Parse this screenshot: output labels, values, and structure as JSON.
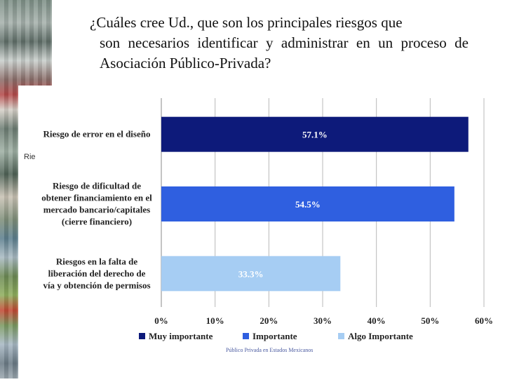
{
  "slide": {
    "title_line1": "¿Cuáles cree Ud., que son los principales riesgos que",
    "title_rest": "son necesarios identificar y administrar en un proceso de Asociación Público-Privada?",
    "stray_label": "Rie"
  },
  "chart_data": {
    "type": "bar",
    "orientation": "horizontal",
    "categories": [
      [
        "Riesgo de error en el diseño"
      ],
      [
        "Riesgo de dificultad de",
        "obtener financiamiento en el",
        "mercado bancario/capitales",
        "(cierre financiero)"
      ],
      [
        "Riesgos en la falta de",
        "liberación del derecho de",
        "vía y obtención de permisos"
      ]
    ],
    "values": [
      57.1,
      54.5,
      33.3
    ],
    "data_labels": [
      "57.1%",
      "54.5%",
      "33.3%"
    ],
    "colors": [
      "#0d1a7a",
      "#2f5fe0",
      "#a6cdf3"
    ],
    "xlim": [
      0,
      60
    ],
    "xticks": [
      "0%",
      "10%",
      "20%",
      "30%",
      "40%",
      "50%",
      "60%"
    ],
    "grid": true,
    "legend_position": "bottom",
    "legend": [
      {
        "label": "Muy importante",
        "color": "#0d1a7a"
      },
      {
        "label": "Importante",
        "color": "#2f5fe0"
      },
      {
        "label": "Algo Importante",
        "color": "#a6cdf3"
      }
    ],
    "source": "Público Privada en Estados Mexicanos"
  }
}
